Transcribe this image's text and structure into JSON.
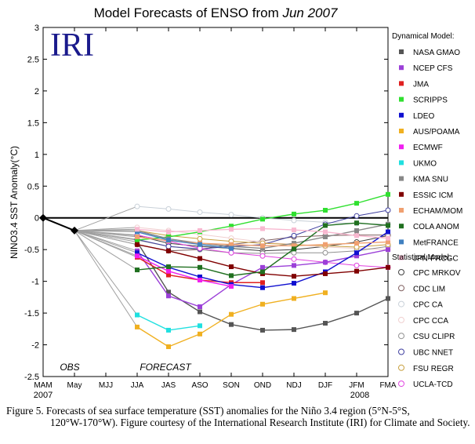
{
  "chart_data": {
    "type": "line",
    "title_prefix": "Model Forecasts of ENSO from ",
    "title_italic": "Jun 2007",
    "logo_text": "IRI",
    "ylabel": "NINO3.4 SST Anomaly(°C)",
    "ylim": [
      -2.5,
      3
    ],
    "yticks": [
      "3",
      "2.5",
      "2",
      "1.5",
      "1",
      "0.5",
      "0",
      "-0.5",
      "-1",
      "-1.5",
      "-2",
      "-2.5"
    ],
    "categories": [
      "MAM",
      "May",
      "MJJ",
      "JJA",
      "JAS",
      "ASO",
      "SON",
      "OND",
      "NDJ",
      "DJF",
      "JFM",
      "FMA"
    ],
    "year_labels": [
      {
        "text": "2007",
        "index": 0
      },
      {
        "text": "2008",
        "index": 10.1
      }
    ],
    "annotations": {
      "obs": "OBS",
      "forecast": "FORECAST"
    },
    "observed": {
      "x": [
        0,
        1
      ],
      "values": [
        0.0,
        -0.2
      ]
    },
    "dynamical_header": "Dynamical Model:",
    "statistical_header": "Statistical Model:",
    "dynamical_series": [
      {
        "name": "NASA GMAO",
        "color": "#555555",
        "values": [
          -0.38,
          -1.17,
          -1.48,
          -1.68,
          -1.77,
          -1.76,
          -1.66,
          -1.5,
          -1.27
        ]
      },
      {
        "name": "NCEP CFS",
        "color": "#9b40d8",
        "values": [
          -0.52,
          -1.23,
          -1.4,
          -1.05,
          -0.78,
          -0.75,
          -0.7,
          -0.6,
          -0.5
        ]
      },
      {
        "name": "JMA",
        "color": "#e02020",
        "values": [
          -0.62,
          -0.9,
          -0.98,
          -1.02,
          -1.02,
          null,
          null,
          null,
          null
        ]
      },
      {
        "name": "SCRIPPS",
        "color": "#30e030",
        "values": [
          -0.35,
          -0.3,
          -0.22,
          -0.13,
          -0.02,
          0.06,
          0.12,
          0.23,
          0.37
        ]
      },
      {
        "name": "LDEO",
        "color": "#1010d0",
        "values": [
          -0.55,
          -0.78,
          -0.93,
          -1.05,
          -1.1,
          -1.03,
          -0.85,
          -0.55,
          -0.22
        ]
      },
      {
        "name": "AUS/POAMA",
        "color": "#f0b020",
        "values": [
          -1.72,
          -2.03,
          -1.83,
          -1.52,
          -1.36,
          -1.27,
          -1.18,
          null,
          null
        ]
      },
      {
        "name": "ECMWF",
        "color": "#f020f0",
        "values": [
          -0.6,
          -0.84,
          -0.98,
          -1.08,
          null,
          null,
          null,
          null,
          null
        ]
      },
      {
        "name": "UKMO",
        "color": "#20e0e0",
        "values": [
          -1.53,
          -1.77,
          -1.7,
          null,
          null,
          null,
          null,
          null,
          null
        ]
      },
      {
        "name": "KMA SNU",
        "color": "#888888",
        "values": [
          -0.2,
          -0.33,
          -0.4,
          -0.45,
          -0.48,
          -0.4,
          -0.3,
          -0.2,
          -0.1
        ]
      },
      {
        "name": "ESSIC ICM",
        "color": "#800000",
        "values": [
          -0.42,
          -0.52,
          -0.64,
          -0.77,
          -0.88,
          -0.92,
          -0.88,
          -0.84,
          -0.78
        ]
      },
      {
        "name": "ECHAM/MOM",
        "color": "#f0a070",
        "values": [
          -0.3,
          -0.36,
          -0.4,
          -0.42,
          -0.44,
          -0.44,
          -0.42,
          -0.4,
          -0.38
        ]
      },
      {
        "name": "COLA ANOM",
        "color": "#207020",
        "values": [
          -0.82,
          -0.77,
          -0.78,
          -0.91,
          -0.85,
          -0.49,
          -0.12,
          -0.08,
          -0.12
        ]
      },
      {
        "name": "MetFRANCE",
        "color": "#4080c0",
        "values": [
          -0.22,
          -0.35,
          -0.42,
          -0.48,
          null,
          null,
          null,
          null,
          null
        ]
      },
      {
        "name": "JPN-FRCGC",
        "color": "#f8b8d0",
        "values": [
          -0.18,
          -0.22,
          -0.2,
          -0.18,
          -0.17,
          -0.19,
          -0.22,
          -0.28,
          -0.32
        ]
      }
    ],
    "statistical_series": [
      {
        "name": "CPC MRKOV",
        "color": "#404040",
        "values": [
          -0.28,
          -0.4,
          -0.45,
          -0.48,
          -0.52,
          -0.5,
          -0.45,
          -0.38,
          -0.28
        ]
      },
      {
        "name": "CDC LIM",
        "color": "#806060",
        "values": [
          -0.42,
          -0.52,
          -0.5,
          -0.42,
          -0.36,
          -0.3,
          -0.28,
          -0.27,
          -0.27
        ]
      },
      {
        "name": "CPC CA",
        "color": "#c8d0d8",
        "values": [
          0.18,
          0.14,
          0.09,
          0.05,
          0.0,
          -0.04,
          -0.07,
          -0.09,
          -0.1
        ]
      },
      {
        "name": "CPC CCA",
        "color": "#f0d0d0",
        "values": [
          -0.15,
          -0.2,
          -0.26,
          -0.32,
          -0.38,
          -0.42,
          -0.46,
          -0.48,
          -0.5
        ]
      },
      {
        "name": "CSU CLIPR",
        "color": "#909090",
        "values": [
          -0.35,
          -0.45,
          -0.5,
          -0.55,
          -0.56,
          -0.55,
          -0.55,
          -0.52,
          -0.45
        ]
      },
      {
        "name": "UBC NNET",
        "color": "#4040a0",
        "values": [
          -0.34,
          -0.45,
          -0.49,
          -0.45,
          -0.42,
          -0.28,
          -0.1,
          0.03,
          0.12
        ]
      },
      {
        "name": "FSU REGR",
        "color": "#c8a040",
        "values": [
          -0.2,
          -0.28,
          -0.33,
          -0.37,
          -0.4,
          -0.42,
          -0.44,
          -0.46,
          -0.42
        ]
      },
      {
        "name": "UCLA-TCD",
        "color": "#e040e0",
        "values": [
          -0.27,
          -0.37,
          -0.48,
          -0.55,
          -0.6,
          -0.65,
          -0.7,
          -0.75,
          -0.78
        ]
      }
    ]
  },
  "caption": {
    "line1": "Figure 5. Forecasts of sea surface temperature (SST) anomalies for the Niño 3.4 region (5°N-5°S,",
    "rest": "120°W-170°W).  Figure courtesy of the International Research Institute (IRI) for Climate and Society."
  }
}
